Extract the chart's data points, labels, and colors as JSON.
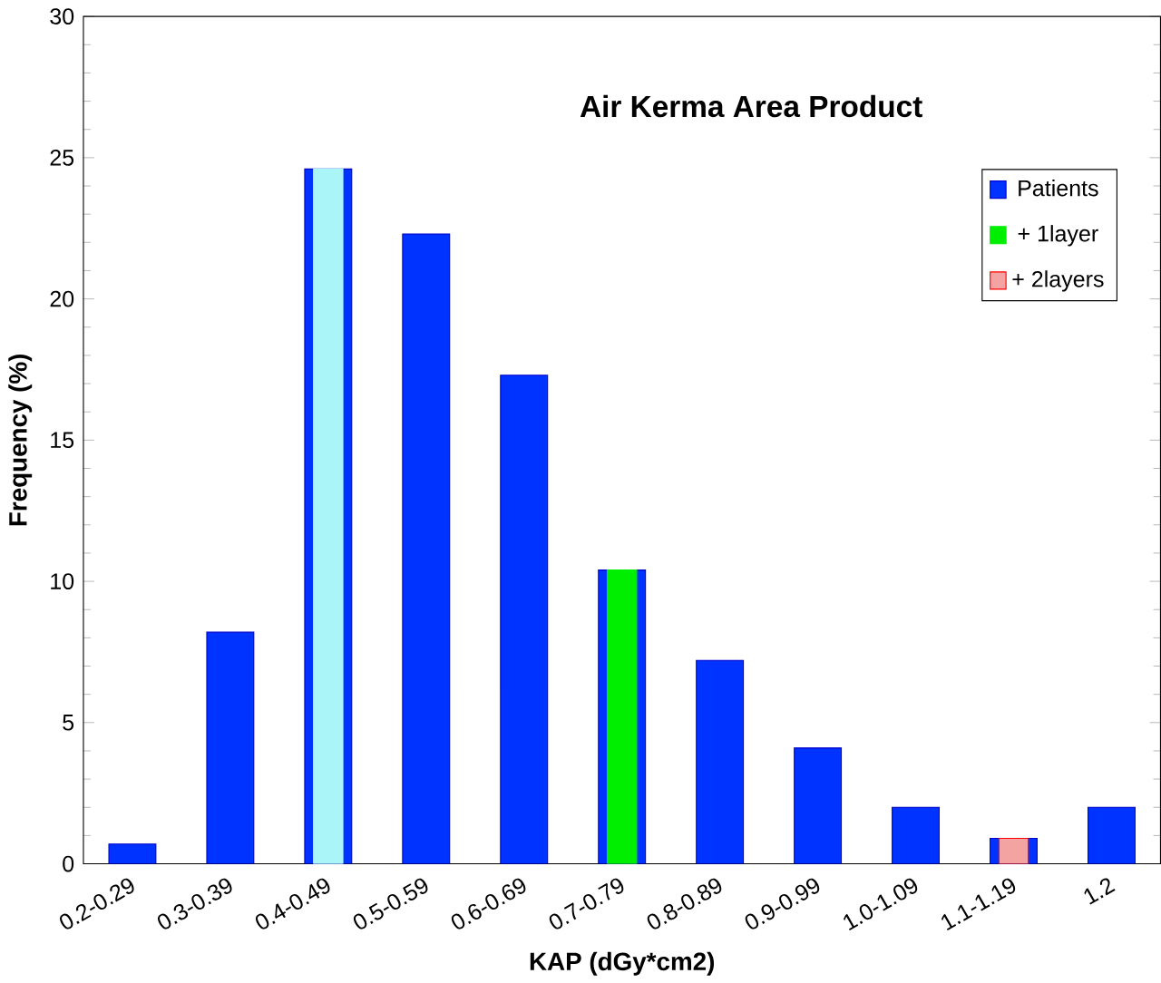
{
  "chart_data": {
    "type": "bar",
    "title": "Air Kerma Area Product",
    "xlabel": "KAP (dGy*cm2)",
    "ylabel": "Frequency (%)",
    "categories": [
      "0.2-0.29",
      "0.3-0.39",
      "0.4-0.49",
      "0.5-0.59",
      "0.6-0.69",
      "0.7-0.79",
      "0.8-0.89",
      "0.9-0.99",
      "1.0-1.09",
      "1.1-1.19",
      "1.2"
    ],
    "series": [
      {
        "name": "Patients",
        "color": "#0033ff",
        "values": [
          0.7,
          8.2,
          24.6,
          22.3,
          17.3,
          10.4,
          7.2,
          4.1,
          2.0,
          0.9,
          2.0
        ]
      },
      {
        "color": "#aaf5f8",
        "values": [
          null,
          null,
          24.6,
          null,
          null,
          null,
          null,
          null,
          null,
          null,
          null
        ]
      },
      {
        "name": "+ 1layer",
        "color": "#00ee00",
        "values": [
          null,
          null,
          null,
          null,
          null,
          10.4,
          null,
          null,
          null,
          null,
          null
        ]
      },
      {
        "name": "+ 2layers",
        "color": "#f4a3a3",
        "values": [
          null,
          null,
          null,
          null,
          null,
          null,
          null,
          null,
          null,
          0.9,
          null
        ]
      }
    ],
    "ylim": [
      0,
      30
    ],
    "yticks": [
      0,
      5,
      10,
      15,
      20,
      25,
      30
    ],
    "grid": false,
    "legend": "top right"
  }
}
